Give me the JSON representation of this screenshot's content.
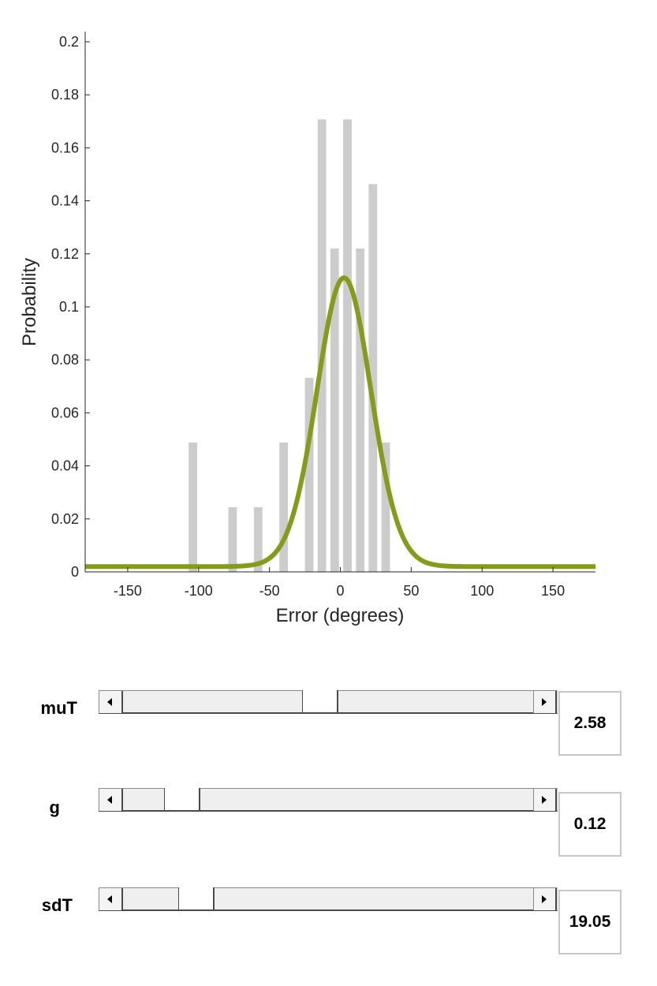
{
  "chart_data": {
    "type": "bar",
    "xlabel": "Error (degrees)",
    "ylabel": "Probability",
    "xlim": [
      -180,
      180
    ],
    "ylim": [
      0,
      0.2
    ],
    "xticks": [
      -150,
      -100,
      -50,
      0,
      50,
      100,
      150
    ],
    "yticks": [
      0,
      0.02,
      0.04,
      0.06,
      0.08,
      0.1,
      0.12,
      0.14,
      0.16,
      0.18,
      0.2
    ],
    "xtick_labels": [
      "-150",
      "-100",
      "-50",
      "0",
      "50",
      "100",
      "150"
    ],
    "ytick_labels": [
      "0",
      "0.02",
      "0.04",
      "0.06",
      "0.08",
      "0.1",
      "0.12",
      "0.14",
      "0.16",
      "0.18",
      "0.2"
    ],
    "histogram": {
      "color": "#cccccc",
      "bin_width": 6,
      "bins": [
        {
          "x": -104,
          "value": 0.0488
        },
        {
          "x": -76,
          "value": 0.0244
        },
        {
          "x": -58,
          "value": 0.0244
        },
        {
          "x": -40,
          "value": 0.0488
        },
        {
          "x": -22,
          "value": 0.0732
        },
        {
          "x": -13,
          "value": 0.1707
        },
        {
          "x": -4,
          "value": 0.122
        },
        {
          "x": 5,
          "value": 0.1707
        },
        {
          "x": 14,
          "value": 0.122
        },
        {
          "x": 23,
          "value": 0.1463
        },
        {
          "x": 32,
          "value": 0.0488
        }
      ]
    },
    "fit": {
      "color": "#859c1a",
      "model": "mixture: g * uniform + (1-g) * von Mises",
      "muT": 2.58,
      "g": 0.12,
      "sdT": 19.05
    }
  },
  "controls": {
    "sliders": [
      {
        "label": "muT",
        "value_text": "2.58",
        "fraction": 0.477
      },
      {
        "label": "g",
        "value_text": "0.12",
        "fraction": 0.109
      },
      {
        "label": "sdT",
        "value_text": "19.05",
        "fraction": 0.147
      }
    ]
  }
}
